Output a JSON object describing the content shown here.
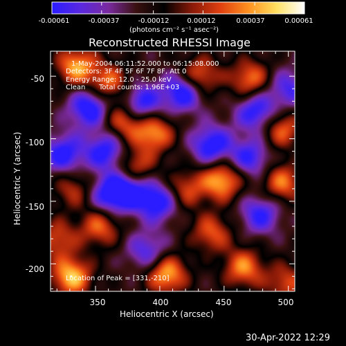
{
  "chart_data": {
    "type": "heatmap",
    "title": "Reconstructed RHESSI Image",
    "xlabel": "Heliocentric X (arcsec)",
    "ylabel": "Heliocentric Y (arcsec)",
    "xlim": [
      315,
      505
    ],
    "ylim": [
      -222,
      -30
    ],
    "x_ticks": [
      350,
      400,
      450,
      500
    ],
    "y_ticks": [
      -50,
      -100,
      -150,
      -200
    ],
    "colorbar": {
      "min": -0.00061,
      "max": 0.00061,
      "tick_values": [
        -0.00061,
        -0.00037,
        -0.00012,
        0.00012,
        0.00037,
        0.00061
      ],
      "tick_labels": [
        "-0.00061",
        "-0.00037",
        "-0.00012",
        "0.00012",
        "0.00037",
        "0.00061"
      ],
      "unit_label": "(photons cm⁻² s⁻¹ asec⁻²)",
      "colormap": [
        "#2a1cff",
        "#5a28e0",
        "#7a2aa0",
        "#3a1010",
        "#000000",
        "#8a1a08",
        "#e04010",
        "#ff9020",
        "#ffe060",
        "#ffffff"
      ]
    },
    "annotations": {
      "time_range": "1-May-2004 06:11:52.000 to 06:15:08.000",
      "detectors": "Detectors: 3F 4F 5F 6F 7F 8F, Att 0",
      "energy": "Energy Range: 12.0 - 25.0 keV",
      "method": "Clean",
      "total_counts": "Total counts: 1.96E+03",
      "peak": "Location of Peak = [331,-210]"
    },
    "peaks": [
      {
        "x": 331,
        "y": -210,
        "v": 1.0
      },
      {
        "x": 335,
        "y": -42,
        "v": 0.9
      },
      {
        "x": 360,
        "y": -55,
        "v": 0.7
      },
      {
        "x": 372,
        "y": -85,
        "v": 0.75
      },
      {
        "x": 395,
        "y": -95,
        "v": 0.85
      },
      {
        "x": 430,
        "y": -50,
        "v": 0.8
      },
      {
        "x": 470,
        "y": -52,
        "v": 0.75
      },
      {
        "x": 495,
        "y": -92,
        "v": 0.7
      },
      {
        "x": 420,
        "y": -140,
        "v": 0.6
      },
      {
        "x": 448,
        "y": -133,
        "v": 0.95
      },
      {
        "x": 495,
        "y": -135,
        "v": 0.75
      },
      {
        "x": 353,
        "y": -170,
        "v": 0.7
      },
      {
        "x": 320,
        "y": -180,
        "v": 0.6
      },
      {
        "x": 440,
        "y": -175,
        "v": 0.65
      },
      {
        "x": 405,
        "y": -208,
        "v": 0.95
      },
      {
        "x": 465,
        "y": -203,
        "v": 0.8
      },
      {
        "x": 380,
        "y": -123,
        "v": 0.7
      },
      {
        "x": 332,
        "y": -140,
        "v": 0.5
      },
      {
        "x": 498,
        "y": -215,
        "v": 0.6
      }
    ],
    "troughs": [
      {
        "x": 345,
        "y": -75,
        "v": -0.9
      },
      {
        "x": 325,
        "y": -112,
        "v": -0.8
      },
      {
        "x": 375,
        "y": -140,
        "v": -0.9
      },
      {
        "x": 398,
        "y": -150,
        "v": -0.85
      },
      {
        "x": 418,
        "y": -62,
        "v": -0.95
      },
      {
        "x": 440,
        "y": -105,
        "v": -0.85
      },
      {
        "x": 475,
        "y": -78,
        "v": -0.8
      },
      {
        "x": 385,
        "y": -72,
        "v": -0.85
      },
      {
        "x": 358,
        "y": -110,
        "v": -0.8
      },
      {
        "x": 360,
        "y": -145,
        "v": -0.7
      },
      {
        "x": 470,
        "y": -115,
        "v": -0.7
      },
      {
        "x": 478,
        "y": -160,
        "v": -0.7
      },
      {
        "x": 390,
        "y": -190,
        "v": -0.6
      },
      {
        "x": 500,
        "y": -60,
        "v": -0.6
      }
    ]
  },
  "timestamp": "30-Apr-2022 12:29"
}
